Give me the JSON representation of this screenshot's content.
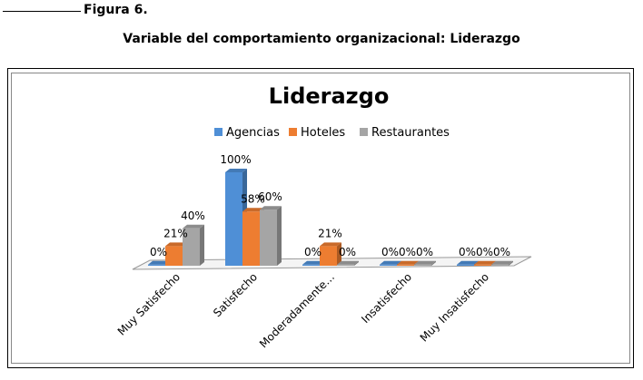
{
  "figure": {
    "label": "Figura 6.",
    "caption": "Variable del comportamiento organizacional: Liderazgo"
  },
  "chart_data": {
    "type": "bar",
    "title": "Liderazgo",
    "categories": [
      "Muy Satisfecho",
      "Satisfecho",
      "Moderadamente…",
      "Insatisfecho",
      "Muy Insatisfecho"
    ],
    "series": [
      {
        "name": "Agencias",
        "values": [
          0,
          100,
          0,
          0,
          0
        ],
        "labels": [
          "0%",
          "100%",
          "0%",
          "0%",
          "0%"
        ],
        "color": "#4F8FD6"
      },
      {
        "name": "Hoteles",
        "values": [
          21,
          58,
          21,
          0,
          0
        ],
        "labels": [
          "21%",
          "58%",
          "21%",
          "0%",
          "0%"
        ],
        "color": "#ED7D31"
      },
      {
        "name": "Restaurantes",
        "values": [
          40,
          60,
          0,
          0,
          0
        ],
        "labels": [
          "40%",
          "60%",
          "0%",
          "0%",
          "0%"
        ],
        "color": "#A5A5A5"
      }
    ],
    "ylim": [
      0,
      100
    ],
    "legend": "top",
    "grid": false
  }
}
